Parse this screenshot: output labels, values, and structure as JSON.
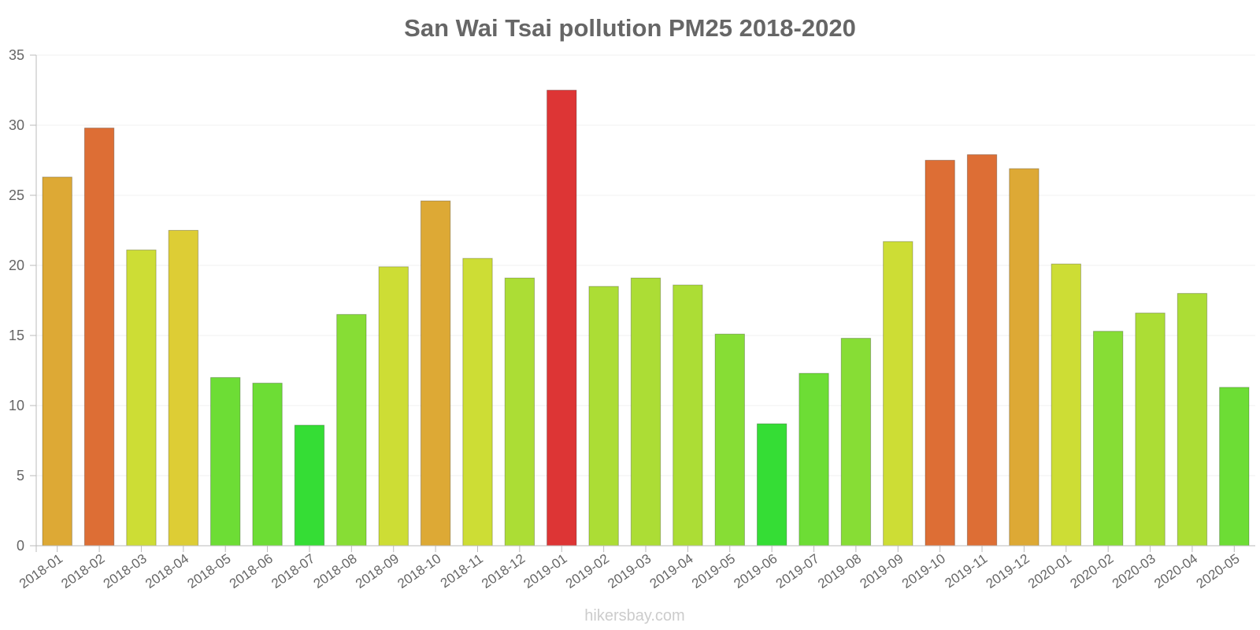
{
  "chart_data": {
    "type": "bar",
    "title": "San Wai Tsai pollution PM25 2018-2020",
    "xlabel": "",
    "ylabel": "",
    "ylim": [
      0,
      35
    ],
    "yticks": [
      "0",
      "5",
      "10",
      "15",
      "20",
      "25",
      "30",
      "35"
    ],
    "categories": [
      "2018-01",
      "2018-02",
      "2018-03",
      "2018-04",
      "2018-05",
      "2018-06",
      "2018-07",
      "2018-08",
      "2018-09",
      "2018-10",
      "2018-11",
      "2018-12",
      "2019-01",
      "2019-02",
      "2019-03",
      "2019-04",
      "2019-05",
      "2019-06",
      "2019-07",
      "2019-08",
      "2019-09",
      "2019-10",
      "2019-11",
      "2019-12",
      "2020-01",
      "2020-02",
      "2020-03",
      "2020-04",
      "2020-05"
    ],
    "values": [
      26.3,
      29.8,
      21.1,
      22.5,
      12.0,
      11.6,
      8.6,
      16.5,
      19.9,
      24.6,
      20.5,
      19.1,
      32.5,
      18.5,
      19.1,
      18.6,
      15.1,
      8.7,
      12.3,
      14.8,
      21.7,
      27.5,
      27.9,
      26.9,
      20.1,
      15.3,
      16.6,
      18.0,
      11.3
    ],
    "colors": [
      "#dda935",
      "#dd6e35",
      "#cddd35",
      "#ddcd35",
      "#6ddd35",
      "#6ddd35",
      "#35dd35",
      "#87dd35",
      "#cddd35",
      "#dda935",
      "#cddd35",
      "#acdd35",
      "#dd3535",
      "#acdd35",
      "#acdd35",
      "#acdd35",
      "#87dd35",
      "#35dd35",
      "#6ddd35",
      "#87dd35",
      "#cddd35",
      "#dd6e35",
      "#dd6e35",
      "#dda935",
      "#cddd35",
      "#87dd35",
      "#acdd35",
      "#acdd35",
      "#6ddd35"
    ],
    "legend": "none",
    "grid": true
  },
  "credit": "hikersbay.com"
}
